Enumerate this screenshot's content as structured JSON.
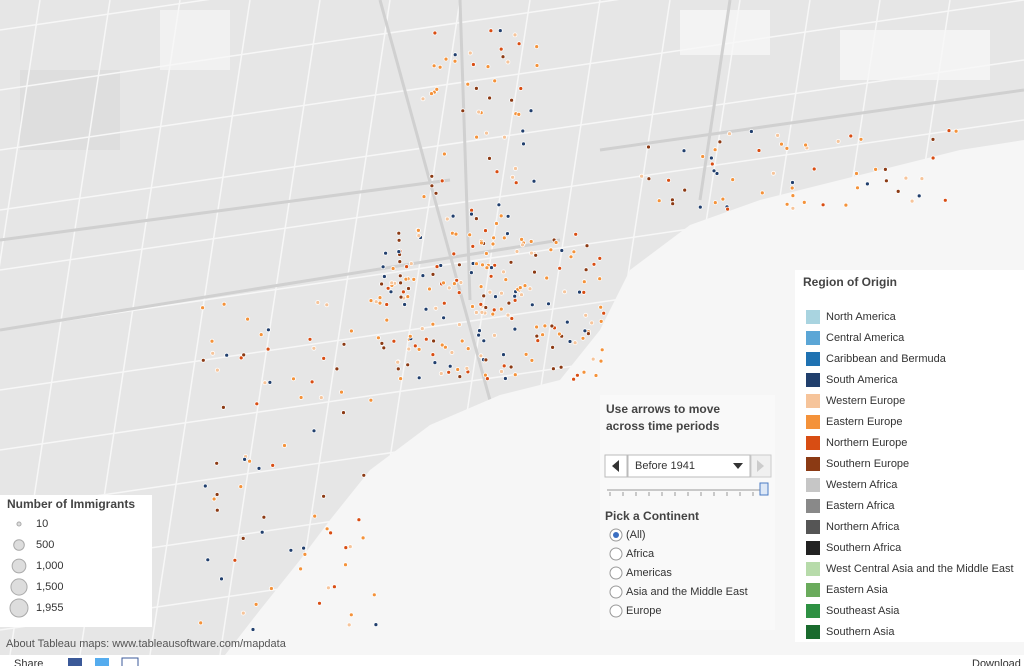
{
  "size_legend": {
    "title": "Number of Immigrants",
    "items": [
      {
        "value": 10,
        "label": "10"
      },
      {
        "value": 500,
        "label": "500"
      },
      {
        "value": 1000,
        "label": "1,000"
      },
      {
        "value": 1500,
        "label": "1,500"
      },
      {
        "value": 1955,
        "label": "1,955"
      }
    ]
  },
  "color_legend": {
    "title": "Region of Origin",
    "items": [
      {
        "label": "North America",
        "color": "#a9d4e0"
      },
      {
        "label": "Central America",
        "color": "#5ba6d6"
      },
      {
        "label": "Caribbean and Bermuda",
        "color": "#1f72b2"
      },
      {
        "label": "South America",
        "color": "#213f6d"
      },
      {
        "label": "Western Europe",
        "color": "#f6c49a"
      },
      {
        "label": "Eastern Europe",
        "color": "#f4923a"
      },
      {
        "label": "Northern Europe",
        "color": "#d84d13"
      },
      {
        "label": "Southern Europe",
        "color": "#8b3a14"
      },
      {
        "label": "Western Africa",
        "color": "#c6c6c6"
      },
      {
        "label": "Eastern Africa",
        "color": "#898989"
      },
      {
        "label": "Northern Africa",
        "color": "#555555"
      },
      {
        "label": "Southern Africa",
        "color": "#222222"
      },
      {
        "label": "West Central Asia and the Middle East",
        "color": "#b7dbaa"
      },
      {
        "label": "Eastern Asia",
        "color": "#6aab5c"
      },
      {
        "label": "Southeast Asia",
        "color": "#2e9143"
      },
      {
        "label": "Southern Asia",
        "color": "#1a6b2e"
      }
    ]
  },
  "time_control": {
    "title": "Use arrows to move across time periods",
    "selected": "Before 1941"
  },
  "continent_filter": {
    "title": "Pick a Continent",
    "options": [
      "(All)",
      "Africa",
      "Americas",
      "Asia and the Middle East",
      "Europe"
    ],
    "selected": 0
  },
  "footer": {
    "attribution": "About Tableau maps: www.tableausoftware.com/mapdata",
    "share": "Share",
    "download": "Download"
  }
}
